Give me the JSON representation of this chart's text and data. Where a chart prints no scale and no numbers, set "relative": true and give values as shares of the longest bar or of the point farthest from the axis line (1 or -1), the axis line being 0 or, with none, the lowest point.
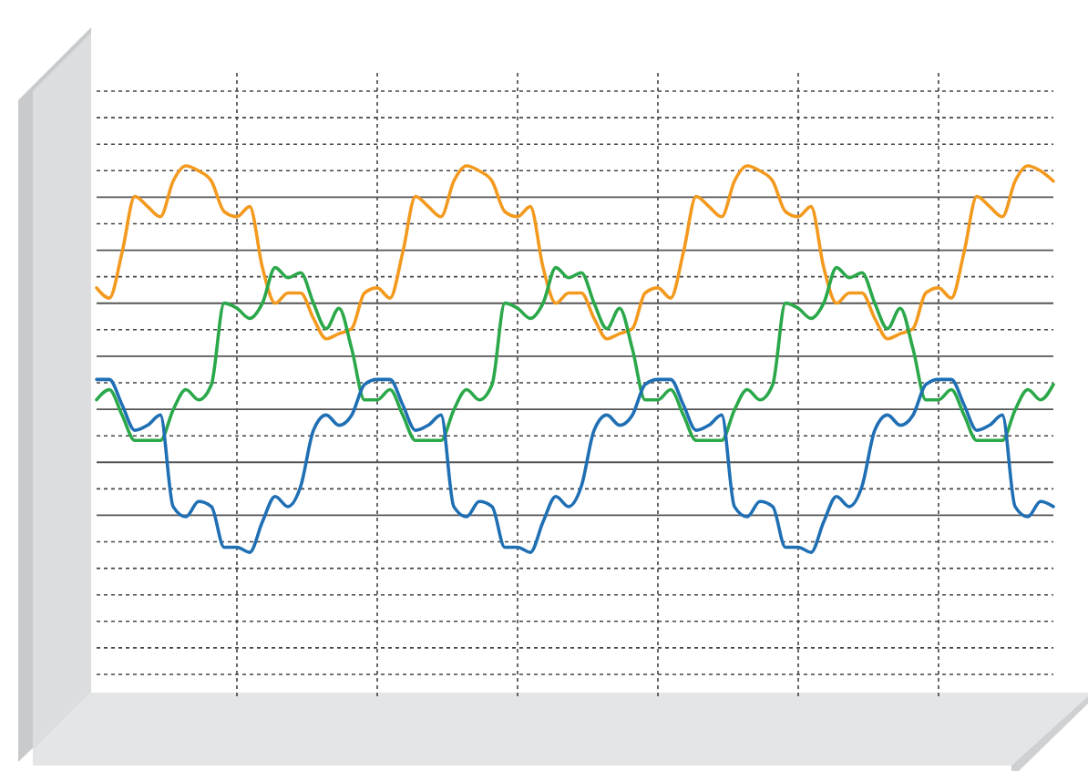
{
  "chart_data": {
    "type": "line",
    "relative": true,
    "grid": true,
    "marker": "none",
    "line_style": "solid",
    "categories": [
      null,
      null,
      null,
      null,
      null,
      null,
      null,
      null,
      null,
      null,
      null,
      null,
      null,
      null,
      null,
      null,
      null,
      null,
      null,
      null,
      null,
      null,
      null,
      null,
      null,
      null,
      null,
      null,
      null,
      null,
      null,
      null,
      null,
      null,
      null,
      null,
      null,
      null,
      null,
      null,
      null,
      null,
      null,
      null,
      null,
      null,
      null,
      null,
      null,
      null,
      null,
      null,
      null,
      null,
      null,
      null,
      null,
      null,
      null,
      null,
      null,
      null,
      null,
      null,
      null,
      null,
      null,
      null,
      null,
      null,
      null,
      null,
      null,
      null,
      null,
      null
    ],
    "series": [
      {
        "color": "#f39a1e",
        "values": [
          0.76,
          0.74,
          0.83,
          0.94,
          0.92,
          0.9,
          0.97,
          1,
          0.99,
          0.97,
          0.91,
          0.9,
          0.92,
          0.8,
          0.73,
          0.75,
          0.75,
          0.7,
          0.66,
          0.67,
          0.68,
          0.75,
          0.76,
          0.74,
          0.83,
          0.94,
          0.92,
          0.9,
          0.97,
          1,
          0.99,
          0.97,
          0.91,
          0.9,
          0.92,
          0.8,
          0.73,
          0.75,
          0.75,
          0.7,
          0.66,
          0.67,
          0.68,
          0.75,
          0.76,
          0.74,
          0.83,
          0.94,
          0.92,
          0.9,
          0.97,
          1,
          0.99,
          0.97,
          0.91,
          0.9,
          0.92,
          0.8,
          0.73,
          0.75,
          0.75,
          0.7,
          0.66,
          0.67,
          0.68,
          0.75,
          0.76,
          0.74,
          0.83,
          0.94,
          0.92,
          0.9,
          0.97,
          1,
          0.99,
          0.97
        ]
      },
      {
        "color": "#2aa84a",
        "values": [
          0.54,
          0.56,
          0.51,
          0.46,
          0.46,
          0.46,
          0.52,
          0.56,
          0.54,
          0.57,
          0.73,
          0.72,
          0.7,
          0.73,
          0.8,
          0.78,
          0.79,
          0.73,
          0.68,
          0.72,
          0.64,
          0.54,
          0.54,
          0.56,
          0.51,
          0.46,
          0.46,
          0.46,
          0.52,
          0.56,
          0.54,
          0.57,
          0.73,
          0.72,
          0.7,
          0.73,
          0.8,
          0.78,
          0.79,
          0.73,
          0.68,
          0.72,
          0.64,
          0.54,
          0.54,
          0.56,
          0.51,
          0.46,
          0.46,
          0.46,
          0.52,
          0.56,
          0.54,
          0.57,
          0.73,
          0.72,
          0.7,
          0.73,
          0.8,
          0.78,
          0.79,
          0.73,
          0.68,
          0.72,
          0.64,
          0.54,
          0.54,
          0.56,
          0.51,
          0.46,
          0.46,
          0.46,
          0.52,
          0.56,
          0.54,
          0.57
        ]
      },
      {
        "color": "#1f6fb4",
        "values": [
          0.58,
          0.58,
          0.53,
          0.48,
          0.49,
          0.51,
          0.33,
          0.31,
          0.34,
          0.33,
          0.25,
          0.25,
          0.24,
          0.3,
          0.35,
          0.33,
          0.37,
          0.48,
          0.51,
          0.49,
          0.51,
          0.57,
          0.58,
          0.58,
          0.53,
          0.48,
          0.49,
          0.51,
          0.33,
          0.31,
          0.34,
          0.33,
          0.25,
          0.25,
          0.24,
          0.3,
          0.35,
          0.33,
          0.37,
          0.48,
          0.51,
          0.49,
          0.51,
          0.57,
          0.58,
          0.58,
          0.53,
          0.48,
          0.49,
          0.51,
          0.33,
          0.31,
          0.34,
          0.33,
          0.25,
          0.25,
          0.24,
          0.3,
          0.35,
          0.33,
          0.37,
          0.48,
          0.51,
          0.49,
          0.51,
          0.57,
          0.58,
          0.58,
          0.53,
          0.48,
          0.49,
          0.51,
          0.33,
          0.31,
          0.34,
          0.33
        ]
      }
    ]
  }
}
